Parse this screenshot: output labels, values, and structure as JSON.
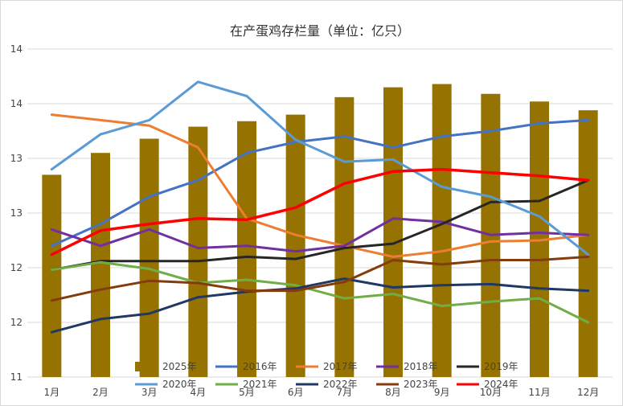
{
  "chart_data": {
    "type": "bar+line",
    "title": "在产蛋鸡存栏量（单位：亿只）",
    "categories": [
      "1月",
      "2月",
      "3月",
      "4月",
      "5月",
      "6月",
      "7月",
      "8月",
      "9月",
      "10月",
      "11月",
      "12月"
    ],
    "y_tick_labels": [
      "14",
      "14",
      "13",
      "13",
      "12",
      "12",
      "11"
    ],
    "ylim": [
      11,
      14
    ],
    "series": [
      {
        "name": "2025年",
        "kind": "bar",
        "color": "#967300",
        "values": [
          12.85,
          13.05,
          13.18,
          13.29,
          13.34,
          13.4,
          13.56,
          13.65,
          13.68,
          13.59,
          13.52,
          13.44
        ]
      },
      {
        "name": "2016年",
        "kind": "line",
        "color": "#4472c4",
        "values": [
          12.2,
          12.4,
          12.65,
          12.8,
          13.05,
          13.15,
          13.2,
          13.1,
          13.2,
          13.25,
          13.32,
          13.35
        ]
      },
      {
        "name": "2017年",
        "kind": "line",
        "color": "#ed7d31",
        "values": [
          13.4,
          13.35,
          13.3,
          13.1,
          12.45,
          12.3,
          12.2,
          12.1,
          12.15,
          12.24,
          12.25,
          12.3
        ]
      },
      {
        "name": "2018年",
        "kind": "line",
        "color": "#7030a0",
        "values": [
          12.35,
          12.2,
          12.35,
          12.18,
          12.2,
          12.15,
          12.2,
          12.45,
          12.42,
          12.3,
          12.32,
          12.3
        ]
      },
      {
        "name": "2019年",
        "kind": "line",
        "color": "#262626",
        "values": [
          11.98,
          12.06,
          12.06,
          12.06,
          12.1,
          12.08,
          12.18,
          12.22,
          12.4,
          12.6,
          12.61,
          12.8
        ]
      },
      {
        "name": "2020年",
        "kind": "line",
        "color": "#5b9bd5",
        "values": [
          12.9,
          13.22,
          13.35,
          13.7,
          13.57,
          13.17,
          12.97,
          12.99,
          12.74,
          12.65,
          12.47,
          12.12
        ]
      },
      {
        "name": "2021年",
        "kind": "line",
        "color": "#70ad47",
        "values": [
          11.98,
          12.05,
          11.99,
          11.86,
          11.89,
          11.84,
          11.72,
          11.76,
          11.65,
          11.69,
          11.72,
          11.5
        ]
      },
      {
        "name": "2022年",
        "kind": "line",
        "color": "#1f3864",
        "values": [
          11.41,
          11.53,
          11.58,
          11.73,
          11.78,
          11.81,
          11.9,
          11.82,
          11.84,
          11.85,
          11.81,
          11.79
        ]
      },
      {
        "name": "2023年",
        "kind": "line",
        "color": "#843c0c",
        "values": [
          11.7,
          11.8,
          11.88,
          11.86,
          11.79,
          11.79,
          11.87,
          12.07,
          12.03,
          12.07,
          12.07,
          12.1
        ]
      },
      {
        "name": "2024年",
        "kind": "line",
        "color": "#ff0000",
        "values": [
          12.12,
          12.34,
          12.4,
          12.45,
          12.44,
          12.55,
          12.77,
          12.88,
          12.9,
          12.87,
          12.84,
          12.8
        ]
      }
    ],
    "legend": "bottom"
  }
}
